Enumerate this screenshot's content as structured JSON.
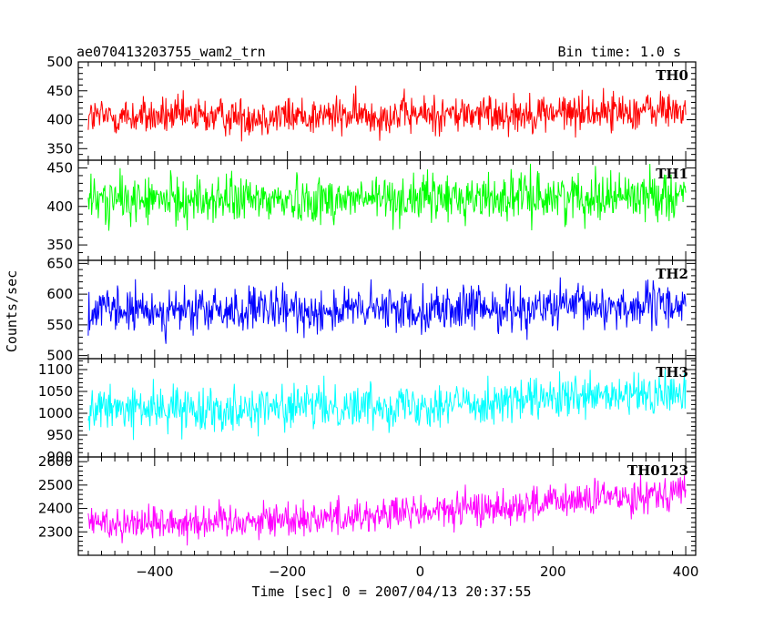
{
  "chart_data": {
    "type": "line",
    "title_left": "ae070413203755_wam2_trn",
    "title_right": "Bin time: 1.0 s",
    "xlabel": "Time [sec] 0 = 2007/04/13 20:37:55",
    "ylabel": "Counts/sec",
    "xlim": [
      -515,
      415
    ],
    "x_ticks": [
      -400,
      -200,
      0,
      200,
      400
    ],
    "bin_time_s": 1.0,
    "x_range": [
      -500,
      400
    ],
    "series": [
      {
        "name": "TH0",
        "color": "#ff0000",
        "ylim": [
          330,
          500
        ],
        "y_ticks": [
          350,
          400,
          450,
          500
        ],
        "base": 405,
        "trend": 12,
        "amplitude": 24
      },
      {
        "name": "TH1",
        "color": "#00ff00",
        "ylim": [
          330,
          460
        ],
        "y_ticks": [
          350,
          400,
          450
        ],
        "base": 408,
        "trend": 8,
        "amplitude": 22
      },
      {
        "name": "TH2",
        "color": "#0000ff",
        "ylim": [
          495,
          655
        ],
        "y_ticks": [
          500,
          550,
          600,
          650
        ],
        "base": 572,
        "trend": 10,
        "amplitude": 26
      },
      {
        "name": "TH3",
        "color": "#00ffff",
        "ylim": [
          900,
          1125
        ],
        "y_ticks": [
          900,
          950,
          1000,
          1050,
          1100
        ],
        "base": 1010,
        "trend": 35,
        "amplitude": 35
      },
      {
        "name": "TH0123",
        "color": "#ff00ff",
        "ylim": [
          2200,
          2620
        ],
        "y_ticks": [
          2300,
          2400,
          2500,
          2600
        ],
        "base": 2340,
        "trend": 140,
        "amplitude": 55
      }
    ]
  }
}
